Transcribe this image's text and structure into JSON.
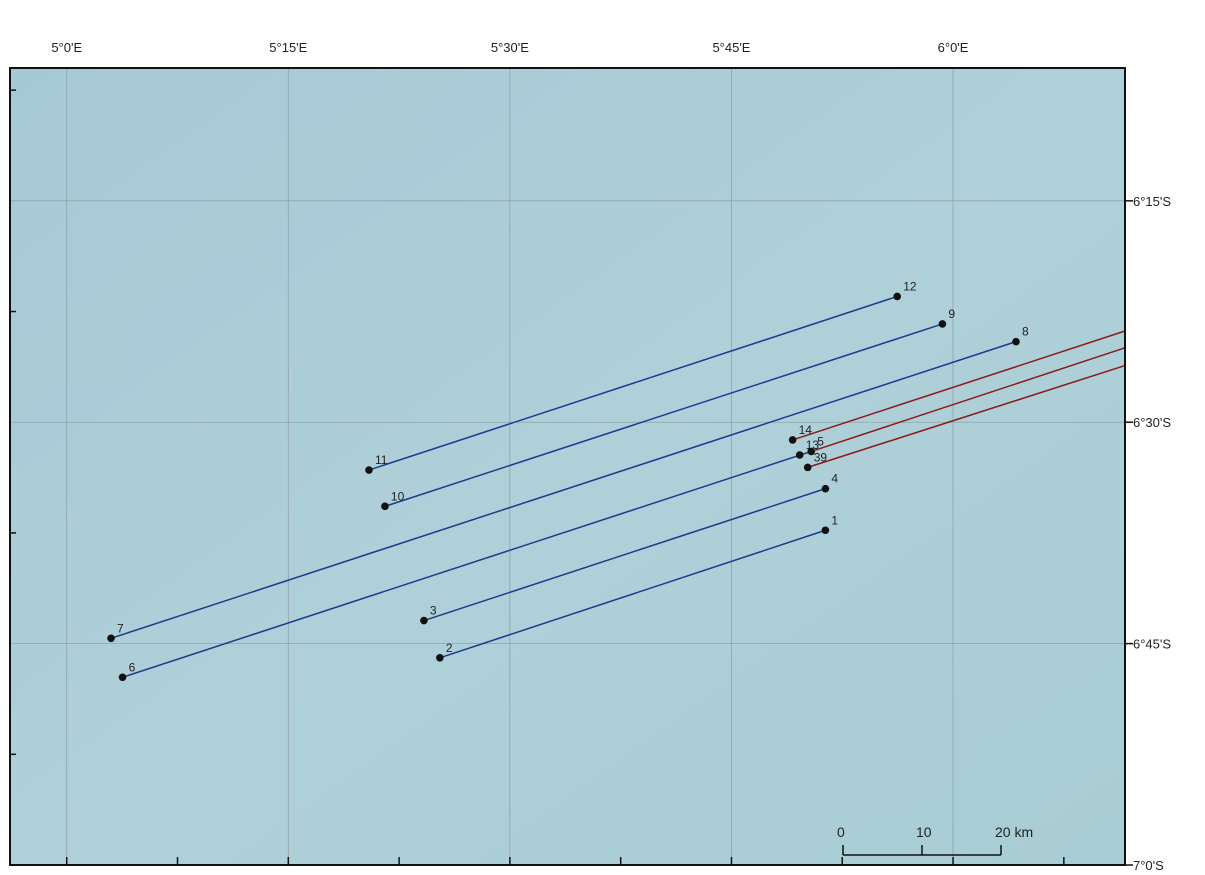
{
  "map": {
    "xlim": [
      4.936,
      6.194
    ],
    "ylim": [
      -7.0,
      -6.1
    ],
    "xticks": [
      {
        "value": 5.0,
        "label": "5°0'E"
      },
      {
        "value": 5.25,
        "label": "5°15'E"
      },
      {
        "value": 5.5,
        "label": "5°30'E"
      },
      {
        "value": 5.75,
        "label": "5°45'E"
      },
      {
        "value": 6.0,
        "label": "6°0'E"
      }
    ],
    "yticks": [
      {
        "value": -6.25,
        "label": "6°15'S"
      },
      {
        "value": -6.5,
        "label": "6°30'S"
      },
      {
        "value": -6.75,
        "label": "6°45'S"
      },
      {
        "value": -7.0,
        "label": "7°0'S"
      }
    ],
    "minor_xticks": [
      5.125,
      5.375,
      5.625,
      5.875,
      6.125
    ],
    "minor_yticks": [
      -6.125,
      -6.375,
      -6.625,
      -6.875
    ],
    "lines": [
      {
        "color": "#1f3a8a",
        "path": [
          [
            5.341,
            -6.554
          ],
          [
            5.937,
            -6.358
          ]
        ]
      },
      {
        "color": "#1f3a8a",
        "path": [
          [
            5.359,
            -6.595
          ],
          [
            5.988,
            -6.389
          ]
        ]
      },
      {
        "color": "#1f3a8a",
        "path": [
          [
            5.05,
            -6.744
          ],
          [
            6.071,
            -6.409
          ]
        ]
      },
      {
        "color": "#1f3a8a",
        "path": [
          [
            5.063,
            -6.788
          ],
          [
            5.84,
            -6.533
          ]
        ]
      },
      {
        "color": "#1f3a8a",
        "path": [
          [
            5.403,
            -6.724
          ],
          [
            5.856,
            -6.575
          ]
        ]
      },
      {
        "color": "#1f3a8a",
        "path": [
          [
            5.421,
            -6.766
          ],
          [
            5.856,
            -6.622
          ]
        ]
      },
      {
        "color": "#8b1a1a",
        "path": [
          [
            5.819,
            -6.52
          ],
          [
            6.194,
            -6.397
          ]
        ]
      },
      {
        "color": "#8b1a1a",
        "path": [
          [
            5.84,
            -6.533
          ],
          [
            6.194,
            -6.416
          ]
        ]
      },
      {
        "color": "#8b1a1a",
        "path": [
          [
            5.836,
            -6.551
          ],
          [
            6.194,
            -6.436
          ]
        ]
      }
    ],
    "points": [
      {
        "label": "12",
        "lon": 5.937,
        "lat": -6.358
      },
      {
        "label": "9",
        "lon": 5.988,
        "lat": -6.389
      },
      {
        "label": "8",
        "lon": 6.071,
        "lat": -6.409
      },
      {
        "label": "14",
        "lon": 5.819,
        "lat": -6.52
      },
      {
        "label": "13",
        "lon": 5.827,
        "lat": -6.537
      },
      {
        "label": "5",
        "lon": 5.84,
        "lat": -6.533
      },
      {
        "label": "39",
        "lon": 5.836,
        "lat": -6.551
      },
      {
        "label": "4",
        "lon": 5.856,
        "lat": -6.575
      },
      {
        "label": "1",
        "lon": 5.856,
        "lat": -6.622
      },
      {
        "label": "11",
        "lon": 5.341,
        "lat": -6.554
      },
      {
        "label": "10",
        "lon": 5.359,
        "lat": -6.595
      },
      {
        "label": "3",
        "lon": 5.403,
        "lat": -6.724
      },
      {
        "label": "2",
        "lon": 5.421,
        "lat": -6.766
      },
      {
        "label": "7",
        "lon": 5.05,
        "lat": -6.744
      },
      {
        "label": "6",
        "lon": 5.063,
        "lat": -6.788
      }
    ],
    "scale_bar": {
      "labels": [
        "0",
        "10",
        "20 km"
      ]
    }
  }
}
